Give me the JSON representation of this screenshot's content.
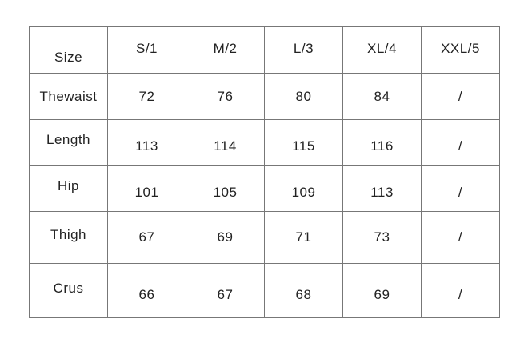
{
  "table": {
    "header": [
      "Size",
      "S/1",
      "M/2",
      "L/3",
      "XL/4",
      "XXL/5"
    ],
    "rows": [
      [
        "Thewaist",
        "72",
        "76",
        "80",
        "84",
        "/"
      ],
      [
        "Length",
        "113",
        "114",
        "115",
        "116",
        "/"
      ],
      [
        "Hip",
        "101",
        "105",
        "109",
        "113",
        "/"
      ],
      [
        "Thigh",
        "67",
        "69",
        "71",
        "73",
        "/"
      ],
      [
        "Crus",
        "66",
        "67",
        "68",
        "69",
        "/"
      ]
    ]
  }
}
